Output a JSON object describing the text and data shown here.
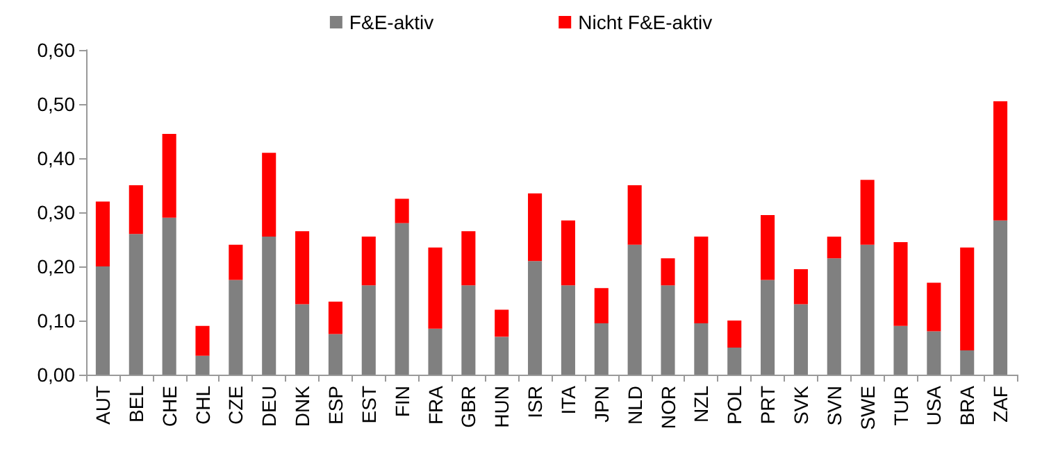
{
  "chart_data": {
    "type": "bar",
    "stacked": true,
    "legend": "top",
    "grid": false,
    "categories": [
      "AUT",
      "BEL",
      "CHE",
      "CHL",
      "CZE",
      "DEU",
      "DNK",
      "ESP",
      "EST",
      "FIN",
      "FRA",
      "GBR",
      "HUN",
      "ISR",
      "ITA",
      "JPN",
      "NLD",
      "NOR",
      "NZL",
      "POL",
      "PRT",
      "SVK",
      "SVN",
      "SWE",
      "TUR",
      "USA",
      "BRA",
      "ZAF"
    ],
    "series": [
      {
        "name": "F&E-aktiv",
        "color": "#808080",
        "values": [
          0.2,
          0.26,
          0.29,
          0.035,
          0.175,
          0.255,
          0.13,
          0.075,
          0.165,
          0.28,
          0.085,
          0.165,
          0.07,
          0.21,
          0.165,
          0.095,
          0.24,
          0.165,
          0.095,
          0.05,
          0.175,
          0.13,
          0.215,
          0.24,
          0.09,
          0.08,
          0.045,
          0.285
        ]
      },
      {
        "name": "Nicht F&E-aktiv",
        "color": "#ff0000",
        "values": [
          0.12,
          0.09,
          0.155,
          0.055,
          0.065,
          0.155,
          0.135,
          0.06,
          0.09,
          0.045,
          0.15,
          0.1,
          0.05,
          0.125,
          0.12,
          0.065,
          0.11,
          0.05,
          0.16,
          0.05,
          0.12,
          0.065,
          0.04,
          0.12,
          0.155,
          0.09,
          0.19,
          0.22
        ]
      }
    ],
    "ylim": [
      0,
      0.6
    ],
    "yticks": [
      {
        "value": 0,
        "label": "0,00"
      },
      {
        "value": 0.1,
        "label": "0,10"
      },
      {
        "value": 0.2,
        "label": "0,20"
      },
      {
        "value": 0.3,
        "label": "0,30"
      },
      {
        "value": 0.4,
        "label": "0,40"
      },
      {
        "value": 0.5,
        "label": "0,50"
      },
      {
        "value": 0.6,
        "label": "0,60"
      }
    ]
  }
}
